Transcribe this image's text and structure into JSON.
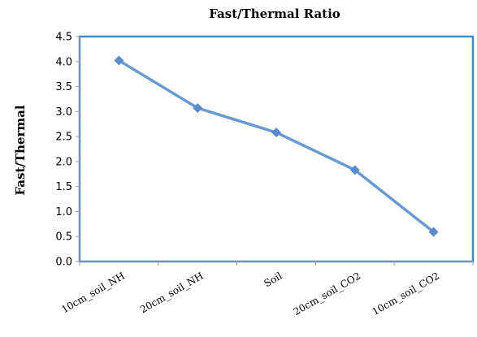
{
  "chart_data": {
    "type": "line",
    "title": "Fast/Thermal Ratio",
    "xlabel": "",
    "ylabel": "Fast/Thermal",
    "categories": [
      "10cm_soil_NH",
      "20cm_soil_NH",
      "Soil",
      "20cm_soil_CO2",
      "10cm_soil_CO2"
    ],
    "series": [
      {
        "values": [
          4.02,
          3.07,
          2.58,
          1.83,
          0.59
        ]
      }
    ],
    "ylim": [
      0,
      4.5
    ],
    "yticks": [
      "0.0",
      "0.5",
      "1.0",
      "1.5",
      "2.0",
      "2.5",
      "3.0",
      "3.5",
      "4.0",
      "4.5"
    ],
    "grid": false,
    "legend": "none",
    "colors": {
      "line": "#6a9ad0",
      "marker": "#5b8cc8",
      "frame": "#4a86c5",
      "axis": "#a0a0a0"
    }
  }
}
